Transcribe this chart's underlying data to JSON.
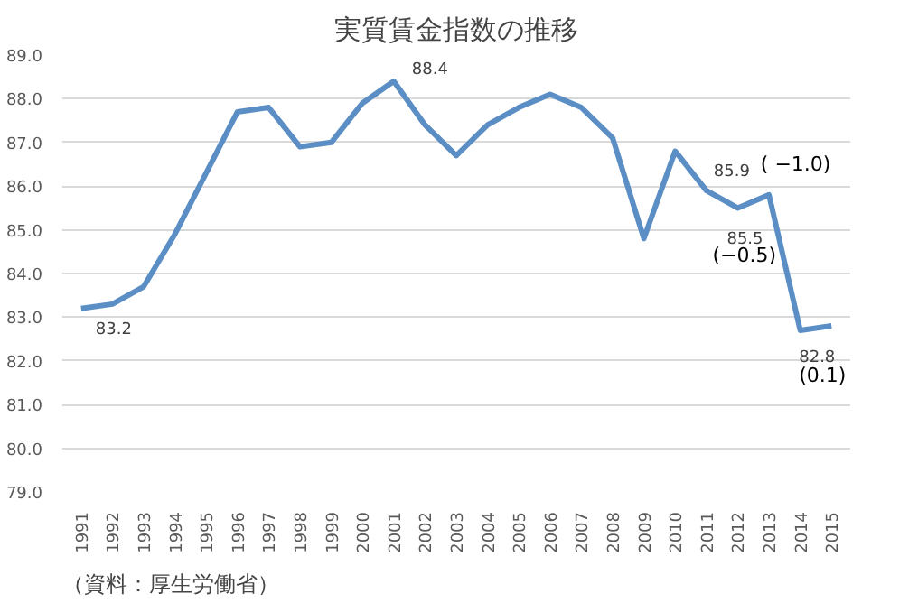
{
  "chart_data": {
    "type": "line",
    "title": "実質賃金指数の推移",
    "categories": [
      "1991",
      "1992",
      "1993",
      "1994",
      "1995",
      "1996",
      "1997",
      "1998",
      "1999",
      "2000",
      "2001",
      "2002",
      "2003",
      "2004",
      "2005",
      "2006",
      "2007",
      "2008",
      "2009",
      "2010",
      "2011",
      "2012",
      "2013",
      "2014",
      "2015"
    ],
    "series": [
      {
        "color": "#5b8ec4",
        "values": [
          83.2,
          83.3,
          83.7,
          84.9,
          86.3,
          87.7,
          87.8,
          86.9,
          87.0,
          87.9,
          88.4,
          87.4,
          86.7,
          87.4,
          87.8,
          88.1,
          87.8,
          87.1,
          84.8,
          86.8,
          85.9,
          85.5,
          85.8,
          82.7,
          82.8
        ],
        "value_labels": [
          "83.2",
          null,
          null,
          null,
          null,
          null,
          null,
          null,
          null,
          null,
          "88.4",
          null,
          null,
          null,
          null,
          null,
          null,
          null,
          null,
          null,
          "85.9",
          "85.5",
          null,
          null,
          "82.8"
        ]
      }
    ],
    "ylim": [
      79.0,
      89.0
    ],
    "yticks": [
      {
        "value": 79,
        "label": "79.0"
      },
      {
        "value": 80,
        "label": "80.0"
      },
      {
        "value": 81,
        "label": "81.0"
      },
      {
        "value": 82,
        "label": "82.0"
      },
      {
        "value": 83,
        "label": "83.0"
      },
      {
        "value": 84,
        "label": "84.0"
      },
      {
        "value": 85,
        "label": "85.0"
      },
      {
        "value": 86,
        "label": "86.0"
      },
      {
        "value": 87,
        "label": "87.0"
      },
      {
        "value": 88,
        "label": "88.0"
      },
      {
        "value": 89,
        "label": "89.0"
      }
    ],
    "grid": "y",
    "marker": "none",
    "line_style": "solid",
    "annotations": [
      {
        "text": "( −1.0)",
        "x": "2011",
        "y": 85.9
      },
      {
        "text": "(−0.5)",
        "x": "2012",
        "y": 85.5
      },
      {
        "text": "(0.1)",
        "x": "2015",
        "y": 82.8
      },
      "（資料：厚生労働省）"
    ]
  }
}
